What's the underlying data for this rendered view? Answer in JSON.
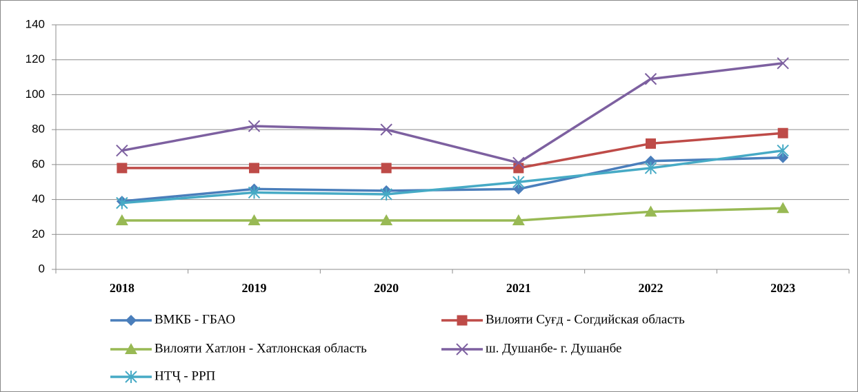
{
  "chart_data": {
    "type": "line",
    "categories": [
      "2018",
      "2019",
      "2020",
      "2021",
      "2022",
      "2023"
    ],
    "series": [
      {
        "name": "ВМКБ - ГБАО",
        "color": "#4a7ebb",
        "marker": "diamond",
        "values": [
          39,
          46,
          45,
          46,
          62,
          64
        ]
      },
      {
        "name": "Вилояти Суғд - Согдийская область",
        "color": "#be4b48",
        "marker": "square",
        "values": [
          58,
          58,
          58,
          58,
          72,
          78
        ]
      },
      {
        "name": "Вилояти Хатлон - Хатлонская область",
        "color": "#98b954",
        "marker": "triangle",
        "values": [
          28,
          28,
          28,
          28,
          33,
          35
        ]
      },
      {
        "name": "ш. Душанбе- г. Душанбе",
        "color": "#7d60a0",
        "marker": "x",
        "values": [
          68,
          82,
          80,
          61,
          109,
          118
        ]
      },
      {
        "name": "НТҶ - РРП",
        "color": "#46aac5",
        "marker": "star",
        "values": [
          38,
          44,
          43,
          50,
          58,
          68
        ]
      }
    ],
    "ylim": [
      0,
      140
    ],
    "yticks": [
      0,
      20,
      40,
      60,
      80,
      100,
      120,
      140
    ],
    "grid": true,
    "legend": "bottom"
  }
}
